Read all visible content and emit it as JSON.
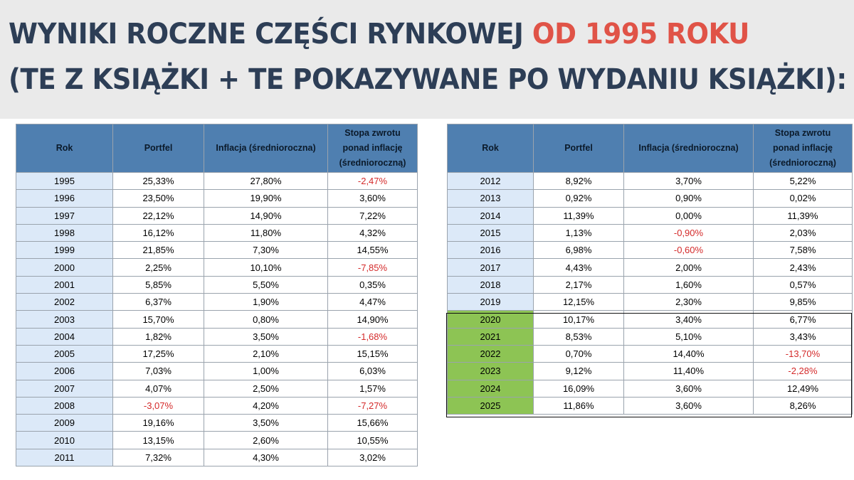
{
  "title": {
    "line1_main": "WYNIKI ROCZNE CZĘŚCI RYNKOWEJ ",
    "line1_accent": "OD 1995 ROKU",
    "line2": "(TE Z KSIĄŻKI + TE POKAZYWANE PO WYDANIU KSIĄŻKI):"
  },
  "columns": {
    "year": "Rok",
    "portfolio": "Portfel",
    "inflation": "Inflacja (średnioroczna)",
    "real_return": [
      "Stopa zwrotu",
      "ponad inflację",
      "(średnioroczną)"
    ]
  },
  "left_rows": [
    {
      "year": "1995",
      "portfolio": "25,33%",
      "inflation": "27,80%",
      "real": "-2,47%"
    },
    {
      "year": "1996",
      "portfolio": "23,50%",
      "inflation": "19,90%",
      "real": "3,60%"
    },
    {
      "year": "1997",
      "portfolio": "22,12%",
      "inflation": "14,90%",
      "real": "7,22%"
    },
    {
      "year": "1998",
      "portfolio": "16,12%",
      "inflation": "11,80%",
      "real": "4,32%"
    },
    {
      "year": "1999",
      "portfolio": "21,85%",
      "inflation": "7,30%",
      "real": "14,55%"
    },
    {
      "year": "2000",
      "portfolio": "2,25%",
      "inflation": "10,10%",
      "real": "-7,85%"
    },
    {
      "year": "2001",
      "portfolio": "5,85%",
      "inflation": "5,50%",
      "real": "0,35%"
    },
    {
      "year": "2002",
      "portfolio": "6,37%",
      "inflation": "1,90%",
      "real": "4,47%"
    },
    {
      "year": "2003",
      "portfolio": "15,70%",
      "inflation": "0,80%",
      "real": "14,90%"
    },
    {
      "year": "2004",
      "portfolio": "1,82%",
      "inflation": "3,50%",
      "real": "-1,68%"
    },
    {
      "year": "2005",
      "portfolio": "17,25%",
      "inflation": "2,10%",
      "real": "15,15%"
    },
    {
      "year": "2006",
      "portfolio": "7,03%",
      "inflation": "1,00%",
      "real": "6,03%"
    },
    {
      "year": "2007",
      "portfolio": "4,07%",
      "inflation": "2,50%",
      "real": "1,57%"
    },
    {
      "year": "2008",
      "portfolio": "-3,07%",
      "inflation": "4,20%",
      "real": "-7,27%"
    },
    {
      "year": "2009",
      "portfolio": "19,16%",
      "inflation": "3,50%",
      "real": "15,66%"
    },
    {
      "year": "2010",
      "portfolio": "13,15%",
      "inflation": "2,60%",
      "real": "10,55%"
    },
    {
      "year": "2011",
      "portfolio": "7,32%",
      "inflation": "4,30%",
      "real": "3,02%"
    }
  ],
  "right_rows": [
    {
      "year": "2012",
      "portfolio": "8,92%",
      "inflation": "3,70%",
      "real": "5,22%"
    },
    {
      "year": "2013",
      "portfolio": "0,92%",
      "inflation": "0,90%",
      "real": "0,02%"
    },
    {
      "year": "2014",
      "portfolio": "11,39%",
      "inflation": "0,00%",
      "real": "11,39%"
    },
    {
      "year": "2015",
      "portfolio": "1,13%",
      "inflation": "-0,90%",
      "real": "2,03%"
    },
    {
      "year": "2016",
      "portfolio": "6,98%",
      "inflation": "-0,60%",
      "real": "7,58%"
    },
    {
      "year": "2017",
      "portfolio": "4,43%",
      "inflation": "2,00%",
      "real": "2,43%"
    },
    {
      "year": "2018",
      "portfolio": "2,17%",
      "inflation": "1,60%",
      "real": "0,57%"
    },
    {
      "year": "2019",
      "portfolio": "12,15%",
      "inflation": "2,30%",
      "real": "9,85%"
    },
    {
      "year": "2020",
      "portfolio": "10,17%",
      "inflation": "3,40%",
      "real": "6,77%",
      "new": true
    },
    {
      "year": "2021",
      "portfolio": "8,53%",
      "inflation": "5,10%",
      "real": "3,43%",
      "new": true
    },
    {
      "year": "2022",
      "portfolio": "0,70%",
      "inflation": "14,40%",
      "real": "-13,70%",
      "new": true
    },
    {
      "year": "2023",
      "portfolio": "9,12%",
      "inflation": "11,40%",
      "real": "-2,28%",
      "new": true
    },
    {
      "year": "2024",
      "portfolio": "16,09%",
      "inflation": "3,60%",
      "real": "12,49%",
      "new": true
    },
    {
      "year": "2025",
      "portfolio": "11,86%",
      "inflation": "3,60%",
      "real": "8,26%",
      "new": true
    }
  ],
  "colors": {
    "title": "#2d3e56",
    "title_accent": "#e05347",
    "header_bg": "#4f7fb0",
    "year_bg": "#dce9f8",
    "new_year_bg": "#8dc454",
    "negative": "#d42a2a"
  }
}
